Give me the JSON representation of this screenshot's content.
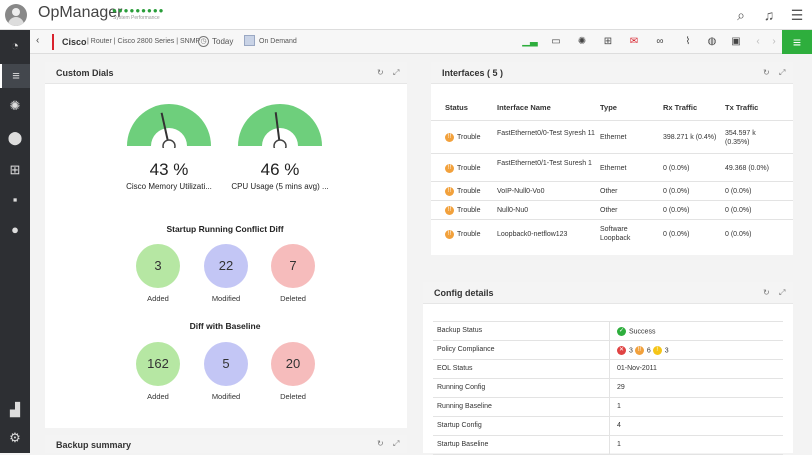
{
  "header": {
    "app_name": "OpManager",
    "dots": "●●●●●●●●●",
    "subtitle": "System Performance"
  },
  "subbar": {
    "back": "‹",
    "device": "Cisco",
    "info": "| Router | Cisco 2800 Series | SNMP",
    "today": "Today",
    "on_demand": "On Demand"
  },
  "custom_dials": {
    "title": "Custom Dials",
    "dials": [
      {
        "value": "43 %",
        "label": "Cisco Memory Utilizati...",
        "percent": 43
      },
      {
        "value": "46 %",
        "label": "CPU Usage (5 mins avg) ...",
        "percent": 46
      }
    ],
    "startup_title": "Startup Running Conflict Diff",
    "startup": [
      {
        "value": "3",
        "label": "Added"
      },
      {
        "value": "22",
        "label": "Modified"
      },
      {
        "value": "7",
        "label": "Deleted"
      }
    ],
    "baseline_title": "Diff with Baseline",
    "baseline": [
      {
        "value": "162",
        "label": "Added"
      },
      {
        "value": "5",
        "label": "Modified"
      },
      {
        "value": "20",
        "label": "Deleted"
      }
    ]
  },
  "backup_summary": {
    "title": "Backup summary"
  },
  "interfaces": {
    "title": "Interfaces ( 5 )",
    "columns": [
      "Status",
      "Interface Name",
      "Type",
      "Rx Traffic",
      "Tx Traffic"
    ],
    "rows": [
      {
        "status": "Trouble",
        "name": "FastEthernet0/0-Test Syresh 11",
        "type": "Ethernet",
        "rx": "398.271 k (0.4%)",
        "tx": "354.597 k (0.35%)"
      },
      {
        "status": "Trouble",
        "name": "FastEthernet0/1-Test Suresh 1",
        "type": "Ethernet",
        "rx": "0 (0.0%)",
        "tx": "49.368 (0.0%)"
      },
      {
        "status": "Trouble",
        "name": "VoIP-Null0-Vo0",
        "type": "Other",
        "rx": "0 (0.0%)",
        "tx": "0 (0.0%)"
      },
      {
        "status": "Trouble",
        "name": "Null0-Nu0",
        "type": "Other",
        "rx": "0 (0.0%)",
        "tx": "0 (0.0%)"
      },
      {
        "status": "Trouble",
        "name": "Loopback0-netflow123",
        "type": "Software Loopback",
        "rx": "0 (0.0%)",
        "tx": "0 (0.0%)"
      }
    ]
  },
  "config_details": {
    "title": "Config details",
    "rows": [
      {
        "label": "Backup Status",
        "value": "Success"
      },
      {
        "label": "Policy Compliance",
        "value": ""
      },
      {
        "label": "EOL Status",
        "value": "01-Nov-2011"
      },
      {
        "label": "Running Config",
        "value": "29"
      },
      {
        "label": "Running Baseline",
        "value": "1"
      },
      {
        "label": "Startup Config",
        "value": "4"
      },
      {
        "label": "Startup Baseline",
        "value": "1"
      }
    ],
    "compliance": {
      "error": "3",
      "trouble": "6",
      "warning": "3"
    }
  }
}
